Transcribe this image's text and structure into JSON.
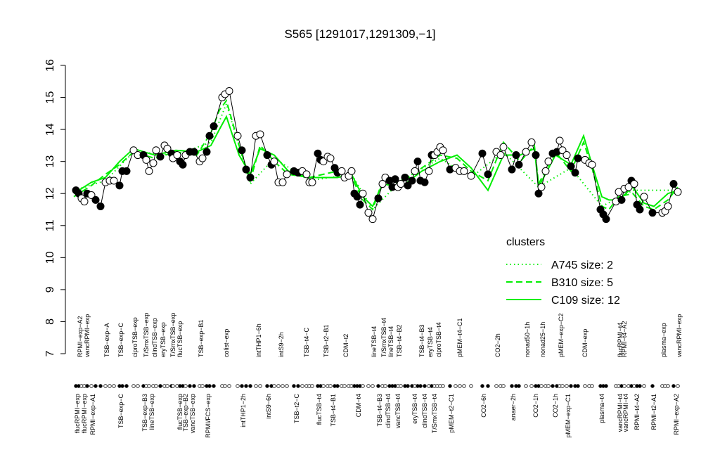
{
  "chart_data": {
    "type": "line",
    "title": "S565 [1291017,1291309,−1]",
    "ylim": [
      7,
      16
    ],
    "yticks": [
      7,
      8,
      9,
      10,
      11,
      12,
      13,
      14,
      15,
      16
    ],
    "xlim": [
      0,
      870
    ],
    "points": {
      "color": "#000000",
      "x": [
        8,
        12,
        16,
        20,
        24,
        30,
        36,
        43,
        50,
        56,
        62,
        70,
        74,
        80,
        90,
        96,
        104,
        108,
        112,
        118,
        122,
        128,
        134,
        138,
        144,
        146,
        152,
        156,
        160,
        164,
        170,
        176,
        184,
        188,
        194,
        198,
        204,
        216,
        220,
        226,
        238,
        244,
        250,
        256,
        264,
        270,
        280,
        286,
        290,
        296,
        302,
        308,
        318,
        324,
        330,
        336,
        340,
        344,
        352,
        356,
        360,
        366,
        370,
        376,
        380,
        386,
        390,
        396,
        400,
        404,
        408,
        412,
        416,
        424,
        430,
        438,
        444,
        448,
        454,
        458,
        462,
        466,
        470,
        476,
        480,
        486,
        490,
        494,
        498,
        504,
        510,
        514,
        518,
        522,
        526,
        530,
        540,
        548,
        554,
        560,
        570,
        586,
        594,
        606,
        612,
        616,
        628,
        634,
        638,
        648,
        656,
        662,
        666,
        670,
        676,
        680,
        686,
        692,
        696,
        700,
        706,
        712,
        718,
        722,
        732,
        738,
        742,
        754,
        758,
        762,
        776,
        780,
        784,
        788,
        794,
        798,
        802,
        806,
        810,
        816,
        828,
        842,
        846,
        850,
        858,
        864
      ],
      "values": [
        12.1,
        12.0,
        11.85,
        11.75,
        12.0,
        11.95,
        11.8,
        11.6,
        12.35,
        12.4,
        12.4,
        12.25,
        12.7,
        12.7,
        13.35,
        13.2,
        13.2,
        13.05,
        12.7,
        12.95,
        13.35,
        13.15,
        13.5,
        13.4,
        13.25,
        13.1,
        13.2,
        13.0,
        12.9,
        13.2,
        13.3,
        13.3,
        13.0,
        13.1,
        13.3,
        13.8,
        14.1,
        15.0,
        15.1,
        15.2,
        13.8,
        13.35,
        12.75,
        12.5,
        13.8,
        13.85,
        13.2,
        12.9,
        13.0,
        12.35,
        12.35,
        12.6,
        12.7,
        12.65,
        12.7,
        12.6,
        12.35,
        12.35,
        13.25,
        13.05,
        13.0,
        13.15,
        13.1,
        12.8,
        12.65,
        12.7,
        12.5,
        12.55,
        12.7,
        12.0,
        11.9,
        11.65,
        12.0,
        11.4,
        11.2,
        11.85,
        12.3,
        12.5,
        12.4,
        12.2,
        12.45,
        12.2,
        12.3,
        12.5,
        12.25,
        12.4,
        12.7,
        13.0,
        12.4,
        12.35,
        12.7,
        13.2,
        13.2,
        13.3,
        13.45,
        13.35,
        12.75,
        12.8,
        12.7,
        12.7,
        12.55,
        13.25,
        12.6,
        13.3,
        13.2,
        13.45,
        12.75,
        13.2,
        12.9,
        13.3,
        13.6,
        13.2,
        12.0,
        12.2,
        12.7,
        13.0,
        13.25,
        13.3,
        13.65,
        13.35,
        13.2,
        12.85,
        12.65,
        13.1,
        13.05,
        12.95,
        12.9,
        11.5,
        11.35,
        11.2,
        11.75,
        12.05,
        11.8,
        12.15,
        12.2,
        12.4,
        12.3,
        11.65,
        11.5,
        11.9,
        11.4,
        11.4,
        11.45,
        11.6,
        12.3,
        12.05
      ],
      "filled": [
        true,
        true,
        false,
        false,
        true,
        false,
        true,
        true,
        false,
        false,
        false,
        true,
        true,
        true,
        false,
        false,
        true,
        false,
        false,
        false,
        false,
        true,
        false,
        false,
        true,
        false,
        false,
        true,
        true,
        false,
        true,
        true,
        false,
        false,
        true,
        true,
        true,
        false,
        false,
        false,
        false,
        true,
        true,
        true,
        false,
        false,
        true,
        true,
        false,
        false,
        false,
        false,
        true,
        true,
        false,
        false,
        false,
        false,
        true,
        true,
        false,
        false,
        false,
        true,
        true,
        false,
        false,
        false,
        false,
        true,
        true,
        true,
        false,
        false,
        false,
        true,
        false,
        false,
        true,
        true,
        true,
        false,
        false,
        true,
        true,
        true,
        false,
        true,
        true,
        true,
        false,
        true,
        false,
        false,
        false,
        false,
        true,
        false,
        false,
        false,
        false,
        true,
        true,
        false,
        false,
        false,
        true,
        true,
        true,
        false,
        false,
        true,
        true,
        false,
        false,
        false,
        true,
        true,
        false,
        false,
        false,
        true,
        true,
        true,
        false,
        false,
        false,
        true,
        true,
        true,
        false,
        false,
        true,
        false,
        false,
        true,
        false,
        true,
        true,
        false,
        true,
        false,
        false,
        false,
        true,
        false
      ]
    },
    "legend_title": "clusters",
    "legend_color": "#00ee00",
    "series": [
      {
        "name": "A745 size: 2",
        "color": "#00ee00",
        "style": "dotted",
        "x": [
          5,
          50,
          90,
          150,
          200,
          222,
          256,
          290,
          340,
          400,
          430,
          470,
          526,
          570,
          616,
          666,
          712,
          756,
          800,
          864
        ],
        "values": [
          12.1,
          12.4,
          13.3,
          13.2,
          13.6,
          14.8,
          12.3,
          13.1,
          12.4,
          12.6,
          11.5,
          12.4,
          13.1,
          12.5,
          13.3,
          12.2,
          12.8,
          11.6,
          12.1,
          12.1
        ]
      },
      {
        "name": "B310 size: 5",
        "color": "#00ee00",
        "style": "dashed",
        "x": [
          5,
          30,
          50,
          70,
          90,
          120,
          150,
          180,
          200,
          212,
          222,
          240,
          256,
          270,
          290,
          310,
          340,
          380,
          400,
          416,
          430,
          444,
          470,
          500,
          526,
          550,
          570,
          594,
          616,
          640,
          660,
          666,
          690,
          712,
          730,
          742,
          756,
          766,
          780,
          800,
          816,
          830,
          850,
          864
        ],
        "values": [
          11.9,
          12.25,
          12.6,
          12.9,
          13.3,
          13.1,
          13.3,
          13.2,
          13.9,
          14.6,
          14.9,
          13.5,
          12.4,
          13.5,
          13.0,
          12.6,
          12.5,
          12.7,
          12.5,
          11.8,
          11.5,
          12.4,
          12.3,
          12.8,
          13.2,
          13.1,
          12.7,
          12.4,
          13.6,
          13.0,
          13.5,
          12.3,
          13.3,
          12.7,
          13.6,
          12.8,
          11.6,
          11.5,
          11.9,
          12.0,
          11.6,
          11.5,
          11.8,
          12.2
        ]
      },
      {
        "name": "C109 size: 12",
        "color": "#00ee00",
        "style": "solid",
        "x": [
          5,
          30,
          50,
          70,
          90,
          120,
          150,
          180,
          200,
          212,
          222,
          240,
          256,
          270,
          290,
          310,
          340,
          380,
          400,
          416,
          430,
          444,
          470,
          500,
          526,
          550,
          570,
          594,
          616,
          640,
          660,
          666,
          690,
          712,
          730,
          742,
          756,
          766,
          780,
          800,
          816,
          830,
          850,
          864
        ],
        "values": [
          12.0,
          12.35,
          12.5,
          13.0,
          13.4,
          13.2,
          13.35,
          13.3,
          13.5,
          14.0,
          14.4,
          13.2,
          12.6,
          13.4,
          13.2,
          12.7,
          12.5,
          12.5,
          12.6,
          11.9,
          11.6,
          12.3,
          12.2,
          12.7,
          13.0,
          13.2,
          12.8,
          12.1,
          13.2,
          13.2,
          13.4,
          12.2,
          13.2,
          12.9,
          13.8,
          12.9,
          11.9,
          11.8,
          11.8,
          12.2,
          11.7,
          11.6,
          12.0,
          12.1
        ]
      }
    ],
    "top_labels": {
      "x": [
        14,
        24,
        52,
        72,
        92,
        108,
        120,
        132,
        146,
        156,
        186,
        222,
        268,
        300,
        336,
        364,
        392,
        432,
        446,
        456,
        468,
        500,
        512,
        524,
        554,
        608,
        650,
        672,
        698,
        732,
        782,
        788,
        844,
        866
      ],
      "labels": [
        "RPMI−exp−A2",
        "vancRPMI−exp",
        "TSB−exp−A",
        "TSB−exp−C",
        "ciproTSB−exp",
        "T/SmxTSB−exp",
        "clindTSB−exp",
        "eryTSB−exp",
        "T/SmxTSB−exp",
        "flucTSB−exp",
        "TSB−exp−B1",
        "colist−exp",
        "intTHP1−6h",
        "intS9−2h",
        "TSB−t4−C",
        "TSB−t2−B1",
        "CDM−t2",
        "lineTSB−t4",
        "T/SmxTSB−t4",
        "lineTSB−t4",
        "TSB−t4−B2",
        "TSB−t4−B3",
        "eryTSB−t4",
        "ciproTSB−t4",
        "pMEM−t4−C1",
        "CO2−2h",
        "nonad50−1h",
        "nonad25−1h",
        "pMEM−exp−C2",
        "CDM−exp",
        "flucRPMI−t4",
        "RPMI−t4−A2",
        "plasma−exp",
        "vancRPMI−exp"
      ]
    },
    "bottom_labels": {
      "x": [
        10,
        20,
        32,
        72,
        106,
        116,
        156,
        164,
        174,
        196,
        246,
        282,
        322,
        354,
        374,
        410,
        440,
        452,
        466,
        490,
        504,
        518,
        542,
        588,
        630,
        662,
        690,
        708,
        756,
        782,
        790,
        806,
        830,
        862
      ],
      "labels": [
        "flucRPMI−exp",
        "flucRPMI−exp",
        "RPMI−exp−A1",
        "TSB−exp−C",
        "TSB−exp−B3",
        "lineTSB−exp",
        "flucTSB−exp",
        "TSB−exp−B2",
        "vancTSB−exp",
        "RPMI/FCS−exp",
        "intTHP1−2h",
        "intS9−6h",
        "TSB−t2−C",
        "flucTSB−t4",
        "TSB−t4−B1",
        "CDM−t4",
        "TSB−t4−B3",
        "clindTSB−t4",
        "vancTSB−t4",
        "eryTSB−t4",
        "clindTSB−t4",
        "T/SmxTSB−t4",
        "pMEM−t2−C1",
        "CO2−6h",
        "anaer−2h",
        "CO2−1h",
        "CO2−1h",
        "pMEM−exp−C1",
        "plasma−t4",
        "vancRPMI−t4",
        "vancRPMI−t4",
        "RPMI−t4−A2",
        "RPMI−t2−A1",
        "RPMI−exp−A2"
      ]
    }
  }
}
